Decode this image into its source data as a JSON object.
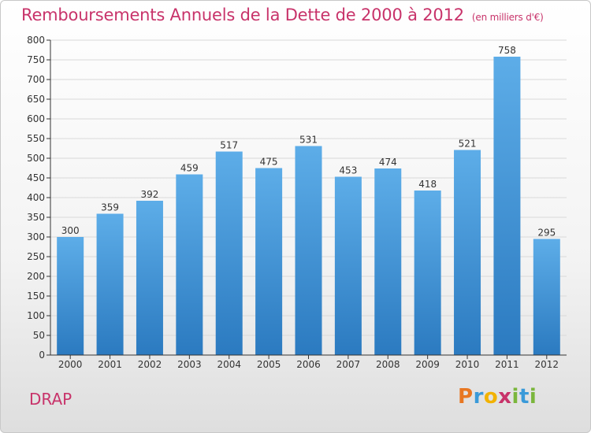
{
  "header": {
    "title": "Remboursements Annuels de la Dette de 2000 à 2012",
    "subtitle": "(en milliers d'€)"
  },
  "footer": {
    "commune": "DRAP",
    "logo_letters": [
      "P",
      "r",
      "o",
      "x",
      "i",
      "t",
      "i"
    ],
    "logo_colors": [
      "#e87722",
      "#3a9ad9",
      "#f2b200",
      "#c8336a",
      "#7bb63c",
      "#3a9ad9",
      "#7bb63c"
    ]
  },
  "colors": {
    "bar_top": "#5dade8",
    "bar_bottom": "#2b7ac0",
    "grid": "#d9d9d9",
    "axis": "#333333"
  },
  "chart_data": {
    "type": "bar",
    "categories": [
      "2000",
      "2001",
      "2002",
      "2003",
      "2004",
      "2005",
      "2006",
      "2007",
      "2008",
      "2009",
      "2010",
      "2011",
      "2012"
    ],
    "values": [
      300,
      359,
      392,
      459,
      517,
      475,
      531,
      453,
      474,
      418,
      521,
      758,
      295
    ],
    "value_labels": [
      "300",
      "359",
      "392",
      "459",
      "517",
      "475",
      "531",
      "453",
      "474",
      "418",
      "521",
      "758",
      "295"
    ],
    "title": "Remboursements Annuels de la Dette de 2000 à 2012",
    "subtitle": "(en milliers d'€)",
    "xlabel": "",
    "ylabel": "",
    "ylim": [
      0,
      800
    ],
    "yticks": [
      0,
      50,
      100,
      150,
      200,
      250,
      300,
      350,
      400,
      450,
      500,
      550,
      600,
      650,
      700,
      750,
      800
    ],
    "grid": true,
    "legend": "none"
  }
}
